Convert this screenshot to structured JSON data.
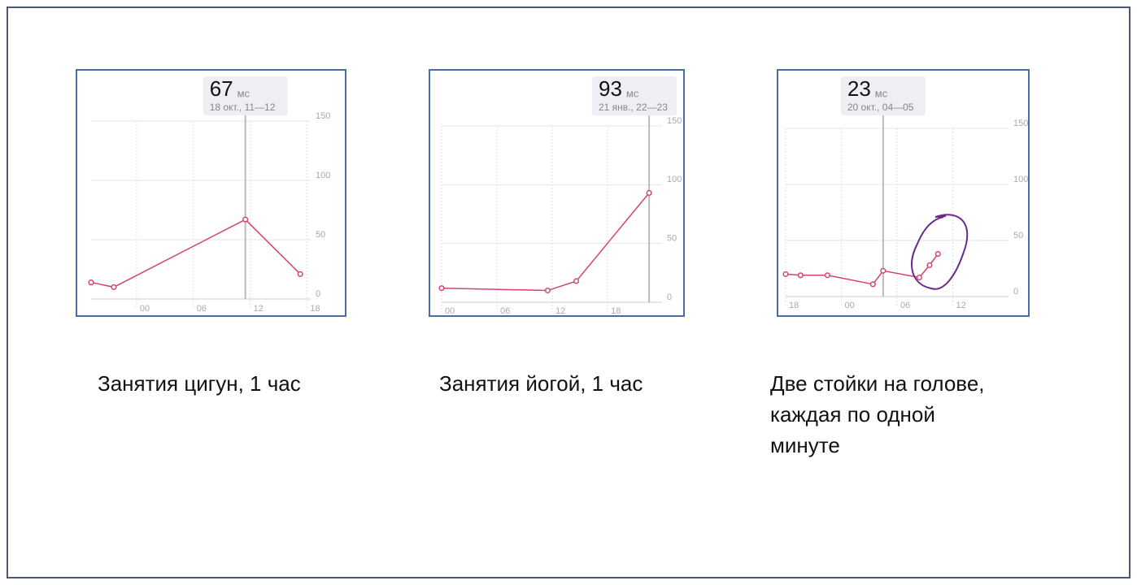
{
  "chart_data": [
    {
      "type": "line",
      "caption": "Занятия цигун, 1 час",
      "tooltip": {
        "value": 67,
        "unit": "мс",
        "date": "18 окт., 11—12"
      },
      "cursor_x": 11.5,
      "x": [
        -4.8,
        -2.4,
        11.5,
        17.3
      ],
      "values": [
        14,
        10,
        67,
        21
      ],
      "color": "#d0456a",
      "xlim": [
        -4.8,
        18.4
      ],
      "ylim": [
        0,
        150
      ],
      "xticks": [
        {
          "value": 0,
          "label": "00"
        },
        {
          "value": 6,
          "label": "06"
        },
        12,
        18
      ],
      "yticks": [
        0,
        50,
        100,
        150
      ],
      "grid": true
    },
    {
      "type": "line",
      "caption": "Занятия йогой, 1 час",
      "tooltip": {
        "value": 93,
        "unit": "мс",
        "date": "21 янв., 22—23"
      },
      "cursor_x": 22.5,
      "x": [
        0,
        11.5,
        14.6,
        22.5
      ],
      "values": [
        12,
        10,
        18,
        93
      ],
      "color": "#d0456a",
      "xlim": [
        0,
        23.9
      ],
      "ylim": [
        0,
        150
      ],
      "xticks": [
        {
          "value": 0,
          "label": "00"
        },
        {
          "value": 6,
          "label": "06"
        },
        12,
        18
      ],
      "yticks": [
        0,
        50,
        100,
        150
      ],
      "grid": true
    },
    {
      "type": "line",
      "caption": "Две стойки на голове, каждая по одной минуте",
      "tooltip": {
        "value": 23,
        "unit": "мс",
        "date": "20 окт., 04—05"
      },
      "cursor_x": 4.5,
      "x": [
        -6,
        -4.4,
        -1.5,
        3.4,
        4.5,
        8.4,
        9.5,
        10.4
      ],
      "values": [
        20,
        19,
        19,
        11,
        23,
        17,
        28,
        38
      ],
      "color": "#d0456a",
      "xlim": [
        -6,
        18
      ],
      "ylim": [
        0,
        150
      ],
      "xticks": [
        {
          "value": -6,
          "label": "18"
        },
        {
          "value": 0,
          "label": "00"
        },
        {
          "value": 6,
          "label": "06"
        },
        12
      ],
      "yticks": [
        0,
        50,
        100,
        150
      ],
      "grid": true
    }
  ]
}
